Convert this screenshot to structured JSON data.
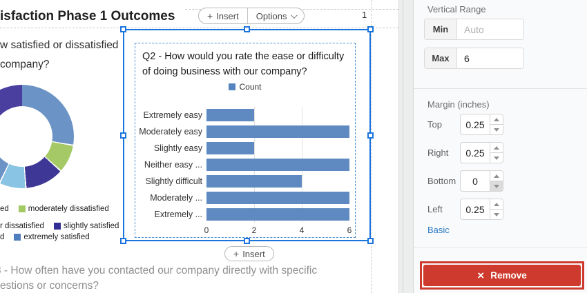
{
  "canvas": {
    "title": "isfaction Phase 1 Outcomes",
    "page_number": "1",
    "toolbar": {
      "plus": "+",
      "insert_label": "Insert",
      "options_label": "Options"
    },
    "insert_below": {
      "plus": "+",
      "label": "Insert"
    },
    "question_top": {
      "line1": "w satisfied or dissatisfied",
      "line2": "company?"
    },
    "question_bottom": {
      "line1": "3 - How often have you contacted our company directly with specific",
      "line2": "estions or concerns?"
    },
    "donut": {
      "segments": [
        {
          "from": 0,
          "to": 99,
          "color": "#6b93c5"
        },
        {
          "from": 100.5,
          "to": 131,
          "color": "#a4c966"
        },
        {
          "from": 132.5,
          "to": 175,
          "color": "#3e3796"
        },
        {
          "from": 176.5,
          "to": 205,
          "color": "#8ac4e4"
        },
        {
          "from": 206.5,
          "to": 239,
          "color": "#6b93c5"
        },
        {
          "from": 240.5,
          "to": 257,
          "color": "#a4c966"
        },
        {
          "from": 258.5,
          "to": 300,
          "color": "#8ac4e4"
        },
        {
          "from": 301.5,
          "to": 360,
          "color": "#4a3f9f"
        }
      ]
    },
    "donut_legend": {
      "row1": [
        {
          "label": "ed"
        },
        {
          "label": "moderately dissatisfied",
          "swatch": "#a3c964"
        }
      ],
      "row2": [
        {
          "label": "r dissatisfied"
        },
        {
          "label": "slightly satisfied",
          "swatch": "#332e94"
        }
      ],
      "row3": [
        {
          "label": "d"
        },
        {
          "label": "extremely satisfied",
          "swatch": "#4f7fbc"
        }
      ]
    }
  },
  "chart_data": {
    "type": "bar",
    "orientation": "horizontal",
    "title": "Q2 - How would you rate the ease or difficulty of doing business with our company?",
    "title_lines": [
      "Q2 - How would you rate the ease or difficulty",
      "of doing business with our company?"
    ],
    "legend": [
      {
        "name": "Count",
        "color": "#5585bf"
      }
    ],
    "categories": [
      "Extremely easy",
      "Moderately easy",
      "Slightly easy",
      "Neither easy ...",
      "Slightly difficult",
      "Moderately ...",
      "Extremely ..."
    ],
    "values": [
      2,
      6,
      2,
      6,
      4,
      6,
      6
    ],
    "xlim": [
      0,
      6
    ],
    "ticks": [
      0,
      2,
      4,
      6
    ],
    "gridlines": [
      2,
      4
    ],
    "bar_color": "#5e8ac1",
    "grid": true,
    "legend_position": "top"
  },
  "panel": {
    "vertical_range": {
      "title": "Vertical Range",
      "min": {
        "label": "Min",
        "placeholder": "Auto",
        "value": ""
      },
      "max": {
        "label": "Max",
        "value": "6"
      }
    },
    "margins": {
      "title": "Margin (inches)",
      "rows": [
        {
          "label": "Top",
          "value": "0.25"
        },
        {
          "label": "Right",
          "value": "0.25"
        },
        {
          "label": "Bottom",
          "value": "0"
        },
        {
          "label": "Left",
          "value": "0.25"
        }
      ]
    },
    "basic_label": "Basic",
    "remove_button": {
      "icon": "×",
      "label": "Remove",
      "color": "#ce3a2d"
    }
  },
  "colors": {
    "selection": "#1b74dd",
    "accent_link": "#2e7bc4",
    "remove_red": "#ce3a2d"
  }
}
